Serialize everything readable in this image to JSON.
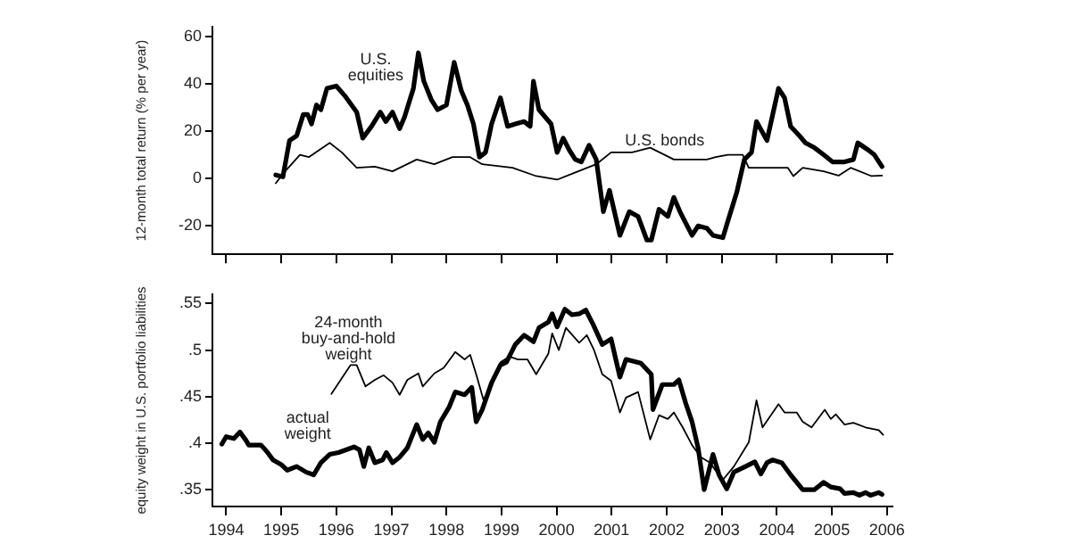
{
  "chart_data": [
    {
      "type": "line",
      "ylabel": "12-month total return (% per year)",
      "xlim": [
        1993.75,
        2006.1
      ],
      "xticks": [
        1994,
        1995,
        1996,
        1997,
        1998,
        1999,
        2000,
        2001,
        2002,
        2003,
        2004,
        2005,
        2006
      ],
      "ylim": [
        -32,
        64
      ],
      "yticks": [
        -20,
        0,
        20,
        40,
        60
      ],
      "tick_labels": "y",
      "grid": false,
      "legend": false,
      "marker": "none",
      "line_style": "solid",
      "series": [
        {
          "name": "U.S.\nequities",
          "color": "#000000",
          "x": [
            1994.9,
            1995.03,
            1995.15,
            1995.28,
            1995.4,
            1995.48,
            1995.55,
            1995.64,
            1995.72,
            1995.83,
            1996.0,
            1996.15,
            1996.37,
            1996.48,
            1996.64,
            1996.8,
            1996.9,
            1997.02,
            1997.15,
            1997.24,
            1997.4,
            1997.49,
            1997.59,
            1997.73,
            1997.84,
            1998.0,
            1998.14,
            1998.27,
            1998.38,
            1998.49,
            1998.6,
            1998.71,
            1998.82,
            1998.98,
            1999.11,
            1999.25,
            1999.41,
            1999.52,
            1999.58,
            1999.68,
            1999.9,
            2000.01,
            2000.12,
            2000.23,
            2000.34,
            2000.45,
            2000.59,
            2000.72,
            2000.85,
            2000.96,
            2001.15,
            2001.32,
            2001.48,
            2001.64,
            2001.72,
            2001.86,
            2002.02,
            2002.13,
            2002.24,
            2002.46,
            2002.57,
            2002.73,
            2002.84,
            2003.02,
            2003.11,
            2003.27,
            2003.41,
            2003.54,
            2003.63,
            2003.82,
            2004.03,
            2004.14,
            2004.25,
            2004.41,
            2004.52,
            2004.68,
            2004.85,
            2005.01,
            2005.23,
            2005.39,
            2005.47,
            2005.66,
            2005.77,
            2005.91
          ],
          "values": [
            1.5,
            0.7,
            16,
            18,
            27,
            27,
            23,
            31,
            29,
            38,
            39,
            35,
            28,
            17,
            22,
            28,
            24,
            28,
            21,
            26,
            38,
            53,
            41,
            33,
            29,
            31,
            49,
            37,
            31,
            23,
            9,
            11,
            23,
            34,
            22,
            23,
            24,
            22,
            41,
            29,
            23,
            11,
            17,
            12,
            8,
            7,
            14,
            8,
            -14,
            -5,
            -24,
            -14,
            -16,
            -26,
            -26,
            -13,
            -16,
            -8,
            -14,
            -24,
            -20,
            -21,
            -24,
            -25,
            -18,
            -6,
            8,
            11,
            24,
            16,
            38,
            34,
            22,
            18,
            15,
            13,
            10,
            7,
            7,
            8,
            15,
            12,
            10,
            5
          ]
        },
        {
          "name": "U.S. bonds",
          "color": "#000000",
          "x": [
            1994.9,
            1995.07,
            1995.34,
            1995.5,
            1995.88,
            1996.1,
            1996.37,
            1996.7,
            1997.02,
            1997.46,
            1997.78,
            1998.11,
            1998.43,
            1998.65,
            1999.2,
            1999.63,
            2000.01,
            2000.28,
            2000.72,
            2000.99,
            2001.37,
            2001.7,
            2002.13,
            2002.46,
            2002.73,
            2002.89,
            2003.11,
            2003.38,
            2003.49,
            2003.98,
            2004.2,
            2004.3,
            2004.47,
            2004.85,
            2005.12,
            2005.34,
            2005.72,
            2005.91
          ],
          "values": [
            -2,
            3,
            10,
            9,
            15,
            11,
            4.5,
            5,
            3,
            8,
            6,
            9,
            9,
            6,
            4.5,
            1,
            -0.5,
            2,
            6,
            11,
            11,
            13,
            8,
            8,
            8,
            9,
            10,
            10,
            4.5,
            4.5,
            4.5,
            1,
            4.5,
            3,
            1.2,
            4.5,
            1,
            1.2
          ]
        }
      ]
    },
    {
      "type": "line",
      "ylabel": "equity weight in U.S. portfolio liabilities",
      "xlim": [
        1993.75,
        2006.1
      ],
      "xticks": [
        1994,
        1995,
        1996,
        1997,
        1998,
        1999,
        2000,
        2001,
        2002,
        2003,
        2004,
        2005,
        2006
      ],
      "ylim": [
        0.332,
        0.56
      ],
      "yticks": [
        {
          "value": 0.35,
          "label": ".35"
        },
        {
          "value": 0.4,
          "label": ".4"
        },
        {
          "value": 0.45,
          "label": ".45"
        },
        {
          "value": 0.5,
          "label": ".5"
        },
        {
          "value": 0.55,
          "label": ".55"
        }
      ],
      "grid": false,
      "legend": false,
      "marker": "none",
      "line_style": "solid",
      "series": [
        {
          "name": "actual\nweight",
          "color": "#000000",
          "x": [
            1993.92,
            1994.0,
            1994.14,
            1994.25,
            1994.36,
            1994.41,
            1994.63,
            1994.74,
            1994.85,
            1995.0,
            1995.11,
            1995.28,
            1995.45,
            1995.59,
            1995.72,
            1995.88,
            1996.04,
            1996.32,
            1996.42,
            1996.5,
            1996.59,
            1996.7,
            1996.84,
            1996.91,
            1997.02,
            1997.15,
            1997.29,
            1997.46,
            1997.57,
            1997.67,
            1997.78,
            1997.89,
            1998.05,
            1998.16,
            1998.33,
            1998.46,
            1998.54,
            1998.65,
            1998.82,
            1998.98,
            1999.09,
            1999.25,
            1999.41,
            1999.58,
            1999.68,
            1999.85,
            1999.92,
            2000.01,
            2000.15,
            2000.28,
            2000.41,
            2000.53,
            2000.66,
            2000.83,
            2000.99,
            2001.15,
            2001.26,
            2001.53,
            2001.72,
            2001.75,
            2001.92,
            2002.13,
            2002.22,
            2002.35,
            2002.46,
            2002.57,
            2002.68,
            2002.84,
            2002.95,
            2003.09,
            2003.22,
            2003.43,
            2003.6,
            2003.71,
            2003.82,
            2003.92,
            2004.09,
            2004.25,
            2004.47,
            2004.68,
            2004.85,
            2004.98,
            2005.15,
            2005.23,
            2005.39,
            2005.5,
            2005.61,
            2005.7,
            2005.85,
            2005.91
          ],
          "values": [
            0.399,
            0.407,
            0.405,
            0.412,
            0.403,
            0.398,
            0.398,
            0.391,
            0.382,
            0.377,
            0.371,
            0.375,
            0.369,
            0.366,
            0.379,
            0.388,
            0.39,
            0.396,
            0.393,
            0.375,
            0.395,
            0.379,
            0.382,
            0.39,
            0.379,
            0.385,
            0.395,
            0.42,
            0.404,
            0.411,
            0.401,
            0.423,
            0.439,
            0.455,
            0.452,
            0.46,
            0.423,
            0.436,
            0.465,
            0.484,
            0.487,
            0.506,
            0.516,
            0.509,
            0.524,
            0.53,
            0.539,
            0.525,
            0.544,
            0.538,
            0.539,
            0.543,
            0.528,
            0.506,
            0.512,
            0.471,
            0.49,
            0.486,
            0.474,
            0.436,
            0.463,
            0.463,
            0.468,
            0.442,
            0.423,
            0.395,
            0.35,
            0.388,
            0.366,
            0.351,
            0.369,
            0.375,
            0.38,
            0.367,
            0.379,
            0.382,
            0.379,
            0.366,
            0.35,
            0.35,
            0.358,
            0.353,
            0.351,
            0.346,
            0.347,
            0.344,
            0.347,
            0.344,
            0.347,
            0.345
          ]
        },
        {
          "name": "24-month\nbuy-and-hold\nweight",
          "color": "#000000",
          "x": [
            1995.91,
            1996.26,
            1996.37,
            1996.53,
            1996.7,
            1996.86,
            1997.02,
            1997.15,
            1997.29,
            1997.49,
            1997.57,
            1997.78,
            1997.95,
            1998.16,
            1998.33,
            1998.43,
            1998.54,
            1998.67,
            1998.82,
            1998.98,
            1999.14,
            1999.3,
            1999.47,
            1999.63,
            1999.85,
            1999.92,
            2000.04,
            2000.17,
            2000.41,
            2000.55,
            2000.68,
            2000.83,
            2000.99,
            2001.15,
            2001.26,
            2001.48,
            2001.7,
            2001.86,
            2002.02,
            2002.13,
            2002.29,
            2002.46,
            2002.62,
            2002.79,
            2003.01,
            2003.22,
            2003.49,
            2003.63,
            2003.74,
            2004.03,
            2004.14,
            2004.36,
            2004.47,
            2004.63,
            2004.87,
            2004.98,
            2005.07,
            2005.23,
            2005.39,
            2005.61,
            2005.85,
            2005.93
          ],
          "values": [
            0.453,
            0.484,
            0.484,
            0.461,
            0.468,
            0.473,
            0.465,
            0.452,
            0.468,
            0.475,
            0.461,
            0.475,
            0.481,
            0.498,
            0.49,
            0.495,
            0.474,
            0.447,
            0.461,
            0.487,
            0.493,
            0.49,
            0.49,
            0.474,
            0.496,
            0.518,
            0.5,
            0.524,
            0.508,
            0.516,
            0.5,
            0.474,
            0.467,
            0.433,
            0.449,
            0.455,
            0.404,
            0.43,
            0.426,
            0.433,
            0.417,
            0.398,
            0.385,
            0.379,
            0.36,
            0.375,
            0.401,
            0.446,
            0.417,
            0.442,
            0.433,
            0.433,
            0.423,
            0.417,
            0.436,
            0.426,
            0.431,
            0.42,
            0.422,
            0.417,
            0.414,
            0.409
          ]
        }
      ]
    }
  ]
}
